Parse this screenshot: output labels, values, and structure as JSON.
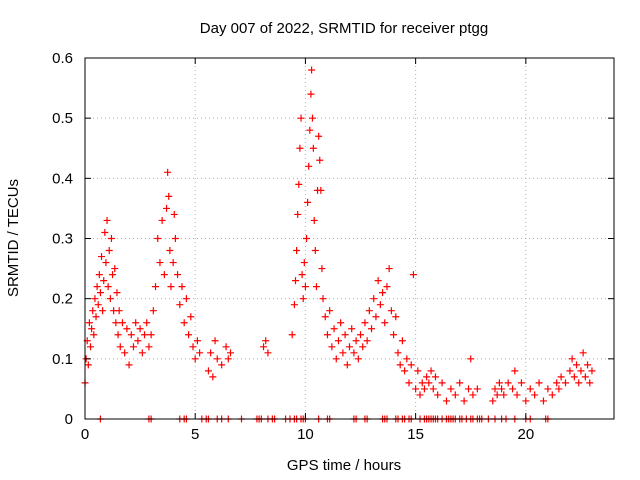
{
  "chart_data": {
    "type": "scatter",
    "title": "Day 007 of 2022, SRMTID for receiver ptgg",
    "xlabel": "GPS time / hours",
    "ylabel": "SRMTID / TECUs",
    "xlim": [
      0,
      24
    ],
    "ylim": [
      0,
      0.6
    ],
    "xticks": [
      0,
      5,
      10,
      15,
      20
    ],
    "xtick_labels": [
      "0",
      "5",
      "10",
      "15",
      "20"
    ],
    "yticks": [
      0,
      0.1,
      0.2,
      0.3,
      0.4,
      0.5,
      0.6
    ],
    "ytick_labels": [
      "0",
      "0.1",
      "0.2",
      "0.3",
      "0.4",
      "0.5",
      "0.6"
    ],
    "grid": true,
    "marker": "+",
    "color": "#ff0000",
    "series": [
      {
        "name": "SRMTID",
        "points": [
          [
            0.0,
            0.06
          ],
          [
            0.05,
            0.1
          ],
          [
            0.1,
            0.13
          ],
          [
            0.15,
            0.09
          ],
          [
            0.2,
            0.16
          ],
          [
            0.25,
            0.12
          ],
          [
            0.3,
            0.15
          ],
          [
            0.35,
            0.18
          ],
          [
            0.4,
            0.14
          ],
          [
            0.45,
            0.2
          ],
          [
            0.5,
            0.17
          ],
          [
            0.55,
            0.22
          ],
          [
            0.6,
            0.19
          ],
          [
            0.65,
            0.24
          ],
          [
            0.7,
            0.21
          ],
          [
            0.75,
            0.27
          ],
          [
            0.8,
            0.18
          ],
          [
            0.85,
            0.23
          ],
          [
            0.9,
            0.31
          ],
          [
            0.95,
            0.26
          ],
          [
            1.0,
            0.33
          ],
          [
            1.05,
            0.22
          ],
          [
            1.1,
            0.28
          ],
          [
            1.15,
            0.2
          ],
          [
            1.2,
            0.3
          ],
          [
            1.25,
            0.24
          ],
          [
            1.3,
            0.18
          ],
          [
            1.35,
            0.25
          ],
          [
            1.4,
            0.16
          ],
          [
            1.45,
            0.21
          ],
          [
            1.5,
            0.14
          ],
          [
            1.55,
            0.18
          ],
          [
            1.6,
            0.12
          ],
          [
            1.7,
            0.16
          ],
          [
            1.8,
            0.11
          ],
          [
            1.9,
            0.15
          ],
          [
            2.0,
            0.09
          ],
          [
            2.1,
            0.14
          ],
          [
            2.2,
            0.12
          ],
          [
            2.3,
            0.16
          ],
          [
            2.4,
            0.13
          ],
          [
            2.5,
            0.15
          ],
          [
            2.6,
            0.11
          ],
          [
            2.7,
            0.14
          ],
          [
            2.8,
            0.16
          ],
          [
            2.9,
            0.12
          ],
          [
            3.0,
            0.14
          ],
          [
            3.1,
            0.18
          ],
          [
            3.2,
            0.22
          ],
          [
            3.3,
            0.3
          ],
          [
            3.4,
            0.26
          ],
          [
            3.5,
            0.33
          ],
          [
            3.6,
            0.24
          ],
          [
            3.7,
            0.35
          ],
          [
            3.75,
            0.41
          ],
          [
            3.8,
            0.37
          ],
          [
            3.85,
            0.28
          ],
          [
            3.9,
            0.22
          ],
          [
            4.0,
            0.26
          ],
          [
            4.05,
            0.34
          ],
          [
            4.1,
            0.3
          ],
          [
            4.2,
            0.24
          ],
          [
            4.3,
            0.19
          ],
          [
            4.4,
            0.22
          ],
          [
            4.5,
            0.16
          ],
          [
            4.6,
            0.2
          ],
          [
            4.7,
            0.14
          ],
          [
            4.8,
            0.17
          ],
          [
            4.9,
            0.12
          ],
          [
            5.0,
            0.1
          ],
          [
            5.1,
            0.13
          ],
          [
            5.2,
            0.11
          ],
          [
            5.6,
            0.08
          ],
          [
            5.7,
            0.11
          ],
          [
            5.8,
            0.07
          ],
          [
            5.9,
            0.13
          ],
          [
            6.0,
            0.1
          ],
          [
            6.2,
            0.09
          ],
          [
            6.4,
            0.12
          ],
          [
            6.5,
            0.1
          ],
          [
            6.6,
            0.11
          ],
          [
            8.1,
            0.12
          ],
          [
            8.2,
            0.13
          ],
          [
            8.3,
            0.11
          ],
          [
            9.4,
            0.14
          ],
          [
            9.5,
            0.19
          ],
          [
            9.55,
            0.23
          ],
          [
            9.6,
            0.28
          ],
          [
            9.65,
            0.34
          ],
          [
            9.7,
            0.39
          ],
          [
            9.75,
            0.45
          ],
          [
            9.8,
            0.5
          ],
          [
            9.85,
            0.24
          ],
          [
            9.9,
            0.2
          ],
          [
            9.95,
            0.26
          ],
          [
            10.0,
            0.22
          ],
          [
            10.05,
            0.3
          ],
          [
            10.1,
            0.36
          ],
          [
            10.15,
            0.42
          ],
          [
            10.2,
            0.48
          ],
          [
            10.25,
            0.54
          ],
          [
            10.28,
            0.58
          ],
          [
            10.32,
            0.5
          ],
          [
            10.36,
            0.45
          ],
          [
            10.4,
            0.33
          ],
          [
            10.45,
            0.28
          ],
          [
            10.5,
            0.22
          ],
          [
            10.55,
            0.38
          ],
          [
            10.6,
            0.47
          ],
          [
            10.65,
            0.43
          ],
          [
            10.7,
            0.38
          ],
          [
            10.75,
            0.25
          ],
          [
            10.8,
            0.2
          ],
          [
            10.9,
            0.17
          ],
          [
            11.0,
            0.14
          ],
          [
            11.1,
            0.18
          ],
          [
            11.2,
            0.12
          ],
          [
            11.3,
            0.15
          ],
          [
            11.4,
            0.1
          ],
          [
            11.5,
            0.13
          ],
          [
            11.6,
            0.16
          ],
          [
            11.7,
            0.11
          ],
          [
            11.8,
            0.14
          ],
          [
            11.9,
            0.09
          ],
          [
            12.0,
            0.12
          ],
          [
            12.1,
            0.15
          ],
          [
            12.2,
            0.11
          ],
          [
            12.3,
            0.13
          ],
          [
            12.4,
            0.1
          ],
          [
            12.5,
            0.14
          ],
          [
            12.6,
            0.12
          ],
          [
            12.7,
            0.16
          ],
          [
            12.8,
            0.13
          ],
          [
            12.9,
            0.18
          ],
          [
            13.0,
            0.15
          ],
          [
            13.1,
            0.2
          ],
          [
            13.2,
            0.17
          ],
          [
            13.3,
            0.23
          ],
          [
            13.4,
            0.19
          ],
          [
            13.5,
            0.21
          ],
          [
            13.6,
            0.16
          ],
          [
            13.7,
            0.22
          ],
          [
            13.8,
            0.25
          ],
          [
            13.9,
            0.18
          ],
          [
            14.0,
            0.14
          ],
          [
            14.1,
            0.17
          ],
          [
            14.2,
            0.11
          ],
          [
            14.3,
            0.09
          ],
          [
            14.4,
            0.13
          ],
          [
            14.5,
            0.08
          ],
          [
            14.6,
            0.1
          ],
          [
            14.7,
            0.06
          ],
          [
            14.8,
            0.09
          ],
          [
            14.9,
            0.24
          ],
          [
            15.0,
            0.05
          ],
          [
            15.1,
            0.08
          ],
          [
            15.2,
            0.04
          ],
          [
            15.3,
            0.06
          ],
          [
            15.4,
            0.05
          ],
          [
            15.5,
            0.07
          ],
          [
            15.6,
            0.06
          ],
          [
            15.7,
            0.08
          ],
          [
            15.8,
            0.05
          ],
          [
            15.9,
            0.07
          ],
          [
            16.0,
            0.04
          ],
          [
            16.2,
            0.06
          ],
          [
            16.4,
            0.03
          ],
          [
            16.6,
            0.05
          ],
          [
            16.8,
            0.04
          ],
          [
            17.0,
            0.06
          ],
          [
            17.2,
            0.03
          ],
          [
            17.4,
            0.05
          ],
          [
            17.5,
            0.1
          ],
          [
            17.6,
            0.04
          ],
          [
            17.8,
            0.05
          ],
          [
            18.5,
            0.03
          ],
          [
            18.6,
            0.05
          ],
          [
            18.7,
            0.04
          ],
          [
            18.8,
            0.06
          ],
          [
            18.9,
            0.05
          ],
          [
            19.0,
            0.04
          ],
          [
            19.2,
            0.06
          ],
          [
            19.4,
            0.05
          ],
          [
            19.5,
            0.08
          ],
          [
            19.6,
            0.04
          ],
          [
            19.8,
            0.06
          ],
          [
            20.0,
            0.03
          ],
          [
            20.2,
            0.05
          ],
          [
            20.4,
            0.04
          ],
          [
            20.6,
            0.06
          ],
          [
            20.8,
            0.03
          ],
          [
            21.0,
            0.05
          ],
          [
            21.2,
            0.04
          ],
          [
            21.4,
            0.06
          ],
          [
            21.5,
            0.05
          ],
          [
            21.6,
            0.07
          ],
          [
            21.8,
            0.06
          ],
          [
            22.0,
            0.08
          ],
          [
            22.1,
            0.1
          ],
          [
            22.2,
            0.07
          ],
          [
            22.3,
            0.09
          ],
          [
            22.4,
            0.06
          ],
          [
            22.5,
            0.08
          ],
          [
            22.6,
            0.11
          ],
          [
            22.7,
            0.07
          ],
          [
            22.8,
            0.09
          ],
          [
            22.9,
            0.06
          ],
          [
            23.0,
            0.08
          ]
        ]
      },
      {
        "name": "SRMTID (zero)",
        "points": [
          [
            0.7,
            0
          ],
          [
            2.9,
            0
          ],
          [
            3.0,
            0
          ],
          [
            4.3,
            0
          ],
          [
            4.5,
            0
          ],
          [
            4.6,
            0
          ],
          [
            5.3,
            0
          ],
          [
            5.5,
            0
          ],
          [
            5.6,
            0
          ],
          [
            6.0,
            0
          ],
          [
            6.2,
            0
          ],
          [
            6.5,
            0
          ],
          [
            7.1,
            0
          ],
          [
            7.8,
            0
          ],
          [
            7.9,
            0
          ],
          [
            8.0,
            0
          ],
          [
            8.3,
            0
          ],
          [
            8.5,
            0
          ],
          [
            8.6,
            0
          ],
          [
            9.1,
            0
          ],
          [
            9.3,
            0
          ],
          [
            9.5,
            0
          ],
          [
            9.6,
            0
          ],
          [
            9.8,
            0
          ],
          [
            9.9,
            0
          ],
          [
            10.0,
            0
          ],
          [
            10.6,
            0
          ],
          [
            11.0,
            0
          ],
          [
            11.1,
            0
          ],
          [
            12.2,
            0
          ],
          [
            12.3,
            0
          ],
          [
            12.7,
            0
          ],
          [
            12.8,
            0
          ],
          [
            13.5,
            0
          ],
          [
            13.6,
            0
          ],
          [
            13.7,
            0
          ],
          [
            14.1,
            0
          ],
          [
            14.2,
            0
          ],
          [
            14.4,
            0
          ],
          [
            14.5,
            0
          ],
          [
            14.7,
            0
          ],
          [
            14.8,
            0
          ],
          [
            15.2,
            0
          ],
          [
            15.4,
            0
          ],
          [
            15.5,
            0
          ],
          [
            15.6,
            0
          ],
          [
            15.7,
            0
          ],
          [
            15.8,
            0
          ],
          [
            15.9,
            0
          ],
          [
            16.0,
            0
          ],
          [
            16.2,
            0
          ],
          [
            16.4,
            0
          ],
          [
            16.5,
            0
          ],
          [
            16.6,
            0
          ],
          [
            16.7,
            0
          ],
          [
            16.8,
            0
          ],
          [
            17.0,
            0
          ],
          [
            17.1,
            0
          ],
          [
            17.3,
            0
          ],
          [
            17.5,
            0
          ],
          [
            17.6,
            0
          ],
          [
            17.8,
            0
          ],
          [
            17.9,
            0
          ],
          [
            18.0,
            0
          ],
          [
            18.3,
            0
          ],
          [
            18.6,
            0
          ],
          [
            18.9,
            0
          ],
          [
            19.1,
            0
          ],
          [
            19.5,
            0
          ],
          [
            20.0,
            0
          ],
          [
            20.2,
            0
          ],
          [
            20.9,
            0
          ],
          [
            21.0,
            0
          ]
        ]
      }
    ]
  }
}
